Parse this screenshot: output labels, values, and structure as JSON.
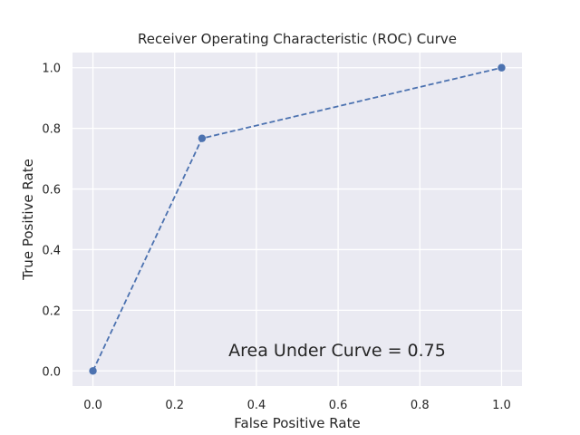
{
  "chart_data": {
    "type": "line",
    "title": "Receiver Operating Characteristic (ROC) Curve",
    "xlabel": "False Positive Rate",
    "ylabel": "True Positive Rate",
    "xlim": [
      -0.05,
      1.05
    ],
    "ylim": [
      -0.05,
      1.05
    ],
    "x_ticks": [
      0.0,
      0.2,
      0.4,
      0.6,
      0.8,
      1.0
    ],
    "y_ticks": [
      0.0,
      0.2,
      0.4,
      0.6,
      0.8,
      1.0
    ],
    "x_tick_labels": [
      "0.0",
      "0.2",
      "0.4",
      "0.6",
      "0.8",
      "1.0"
    ],
    "y_tick_labels": [
      "0.0",
      "0.2",
      "0.4",
      "0.6",
      "0.8",
      "1.0"
    ],
    "grid": true,
    "series": [
      {
        "x": [
          0.0,
          0.267,
          1.0
        ],
        "y": [
          0.0,
          0.767,
          1.0
        ],
        "style": "dashed",
        "marker": "circle",
        "color": "#4c72b0"
      }
    ],
    "annotation": "Area Under Curve = 0.75",
    "colors": {
      "background": "#eaeaf2",
      "grid": "#ffffff",
      "line": "#4c72b0"
    }
  }
}
